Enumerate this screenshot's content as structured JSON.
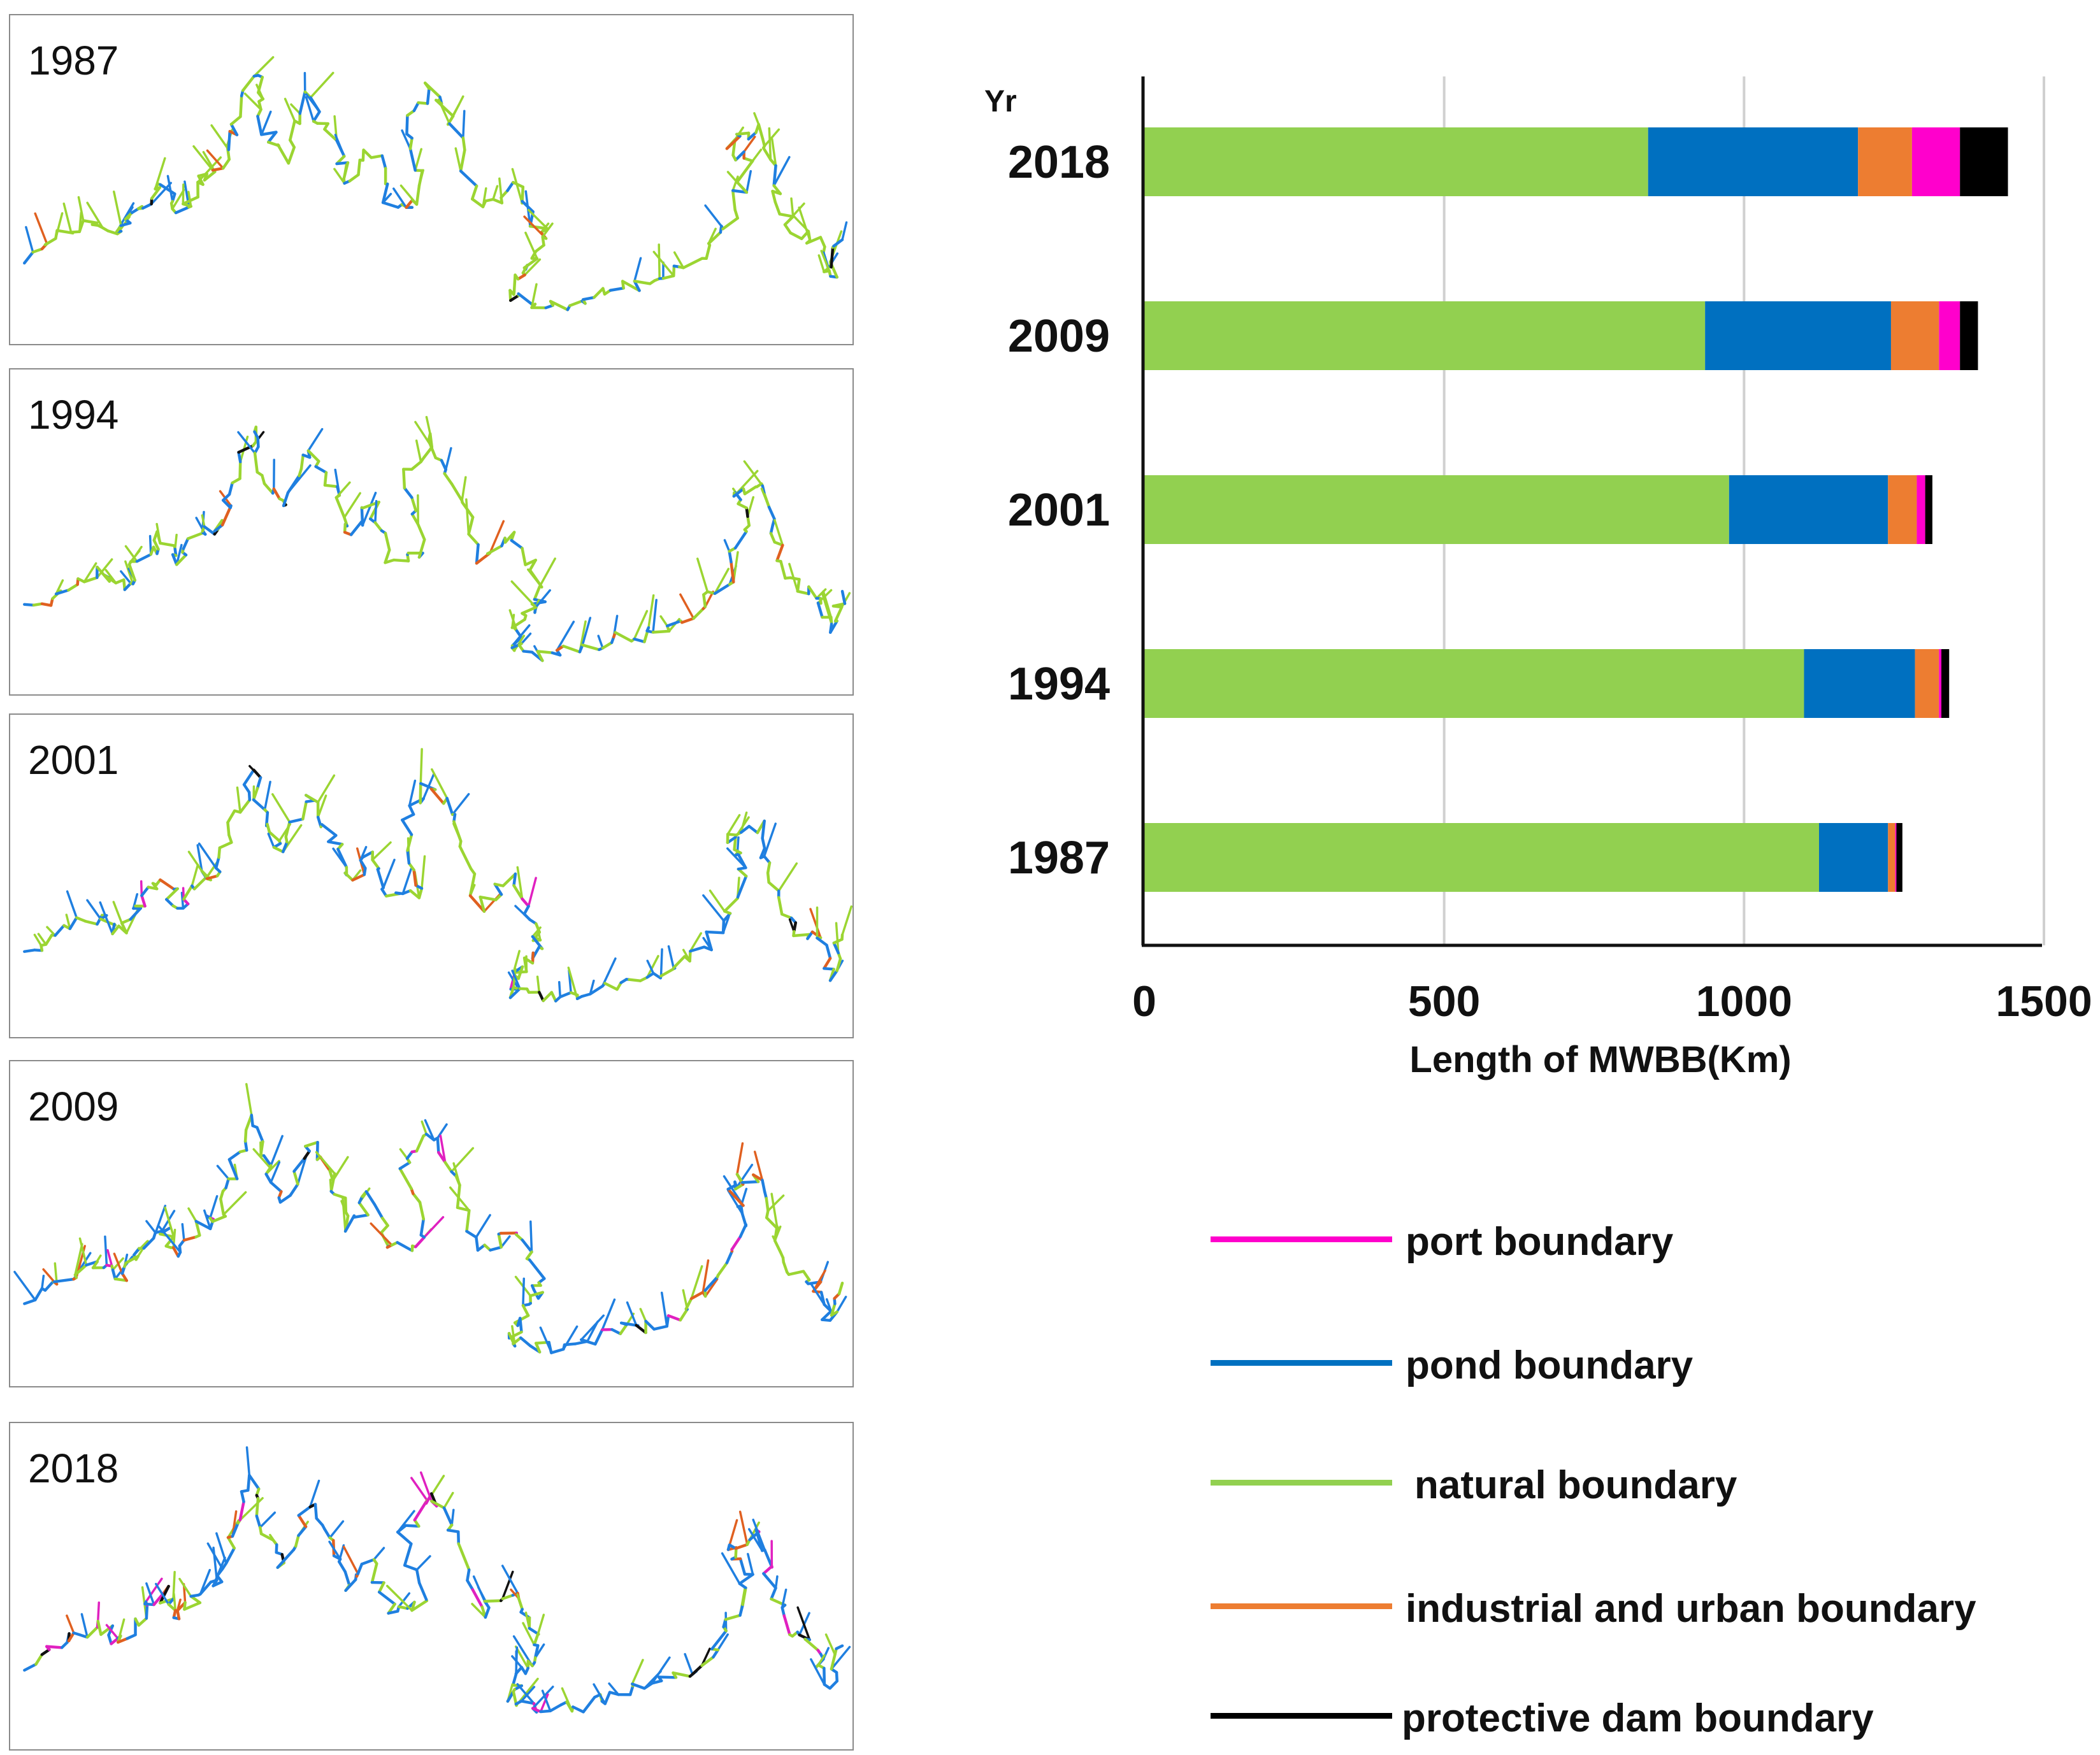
{
  "colors": {
    "natural": "#92d050",
    "pond": "#0070c0",
    "industrial": "#ed7d31",
    "port": "#ff00cc",
    "dam": "#000000",
    "map_natural": "#9bd532",
    "map_pond": "#1f7fe0",
    "map_industrial": "#e06020",
    "map_port": "#e020c0",
    "map_dam": "#111111"
  },
  "maps": [
    {
      "year": "1987",
      "pond": 0.25,
      "industrial": 0.04,
      "port": 0.0,
      "dam": 0.01
    },
    {
      "year": "1994",
      "pond": 0.3,
      "industrial": 0.05,
      "port": 0.0,
      "dam": 0.01
    },
    {
      "year": "2001",
      "pond": 0.42,
      "industrial": 0.05,
      "port": 0.02,
      "dam": 0.01
    },
    {
      "year": "2009",
      "pond": 0.45,
      "industrial": 0.07,
      "port": 0.04,
      "dam": 0.02
    },
    {
      "year": "2018",
      "pond": 0.52,
      "industrial": 0.07,
      "port": 0.08,
      "dam": 0.04
    }
  ],
  "chart_data": {
    "type": "bar",
    "orientation": "horizontal",
    "stacked": true,
    "title": "",
    "ylabel": "Yr",
    "xlabel": "Length of MWBB(Km)",
    "categories": [
      "2018",
      "2009",
      "2001",
      "1994",
      "1987"
    ],
    "series": [
      {
        "name": "natural boundary",
        "key": "natural",
        "values": [
          840,
          935,
          975,
          1100,
          1125
        ]
      },
      {
        "name": "pond boundary",
        "key": "pond",
        "values": [
          350,
          310,
          265,
          185,
          115
        ]
      },
      {
        "name": "industrial and urban boundary",
        "key": "industrial",
        "values": [
          90,
          80,
          48,
          40,
          12
        ]
      },
      {
        "name": "port boundary",
        "key": "port",
        "values": [
          80,
          35,
          14,
          4,
          2
        ]
      },
      {
        "name": "protective dam boundary",
        "key": "dam",
        "values": [
          80,
          30,
          12,
          13,
          10
        ]
      }
    ],
    "xlim": [
      0,
      1500
    ],
    "xticks": [
      0,
      500,
      1000,
      1500
    ],
    "xtick_labels": [
      "0",
      "500",
      "1000",
      "1500"
    ],
    "grid": true
  },
  "legend": [
    {
      "key": "port",
      "label": "port boundary"
    },
    {
      "key": "pond",
      "label": "pond boundary"
    },
    {
      "key": "natural",
      "label": "natural boundary"
    },
    {
      "key": "industrial",
      "label": "industrial and urban boundary"
    },
    {
      "key": "dam",
      "label": "protective dam boundary"
    }
  ]
}
